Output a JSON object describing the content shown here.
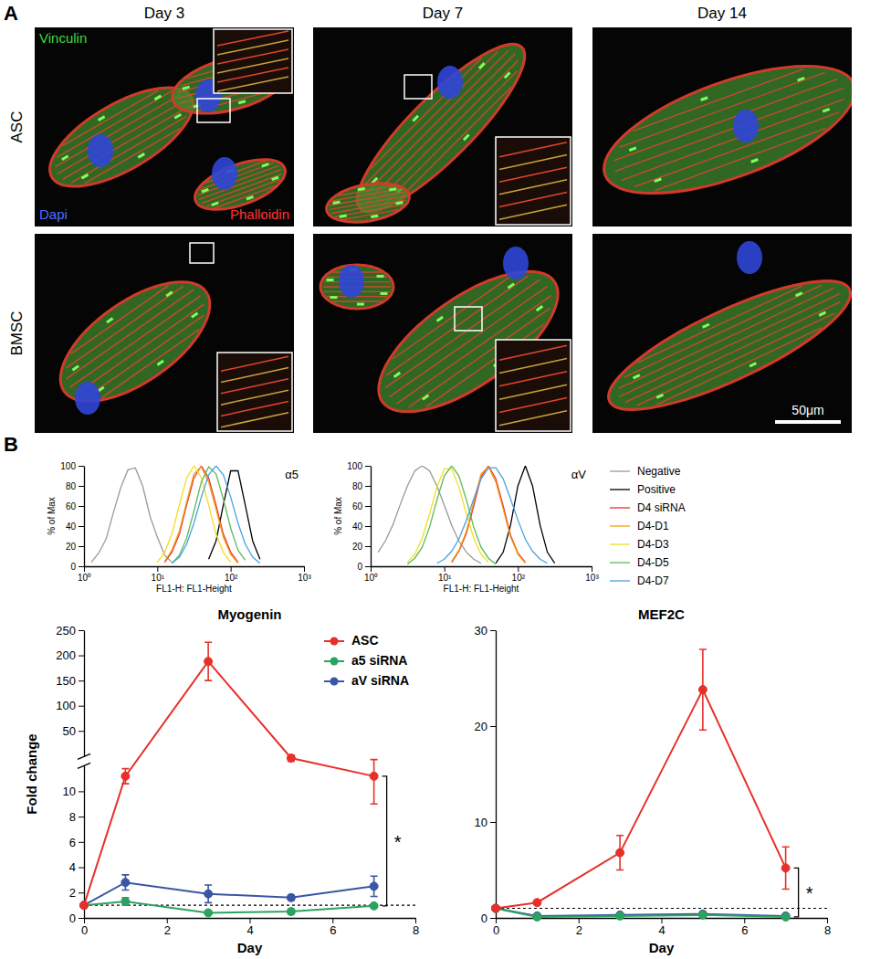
{
  "panel_a": {
    "label": "A",
    "columns": [
      "Day 3",
      "Day 7",
      "Day 14"
    ],
    "rows": [
      "ASC",
      "BMSC"
    ],
    "stains": [
      {
        "text": "Vinculin",
        "color": "#3ddc3d"
      },
      {
        "text": "Dapi",
        "color": "#4f6dff"
      },
      {
        "text": "Phalloidin",
        "color": "#ff3333"
      }
    ],
    "scale_bar": "50μm"
  },
  "panel_b": {
    "label": "B"
  },
  "chart_data": [
    {
      "type": "line",
      "title": "α5",
      "x_label": "FL1-H: FL1-Height",
      "y_label": "% of Max",
      "log": "x",
      "xlim": [
        1,
        1000
      ],
      "xticks": [
        {
          "value": 1,
          "label": "10⁰"
        },
        {
          "value": 10,
          "label": "10¹"
        },
        {
          "value": 100,
          "label": "10²"
        },
        {
          "value": 1000,
          "label": "10³"
        }
      ],
      "ylim": [
        0,
        100
      ],
      "yticks": [
        0,
        20,
        40,
        60,
        80,
        100
      ],
      "x": [
        1,
        1.26,
        1.58,
        2,
        2.51,
        3.16,
        3.98,
        5.01,
        6.31,
        7.94,
        10,
        12.6,
        15.8,
        20,
        25.1,
        31.6,
        39.8,
        50.1,
        63.1,
        79.4,
        100,
        126,
        158,
        200,
        251,
        316,
        398,
        501,
        631,
        794,
        1000
      ],
      "series": [
        {
          "color": "#999999",
          "values": [
            null,
            4,
            13,
            27,
            53,
            78,
            96,
            98,
            80,
            50,
            29,
            11,
            4,
            null,
            null,
            null,
            null,
            null,
            null,
            null,
            null,
            null,
            null,
            null,
            null,
            null,
            null,
            null,
            null,
            null,
            null
          ]
        },
        {
          "color": "#000000",
          "values": [
            null,
            null,
            null,
            null,
            null,
            null,
            null,
            null,
            null,
            null,
            null,
            null,
            null,
            null,
            null,
            null,
            null,
            7,
            25,
            61,
            95,
            95,
            61,
            25,
            7,
            null,
            null,
            null,
            null,
            null,
            null
          ]
        },
        {
          "color": "#e8302a",
          "values": [
            null,
            null,
            null,
            null,
            null,
            null,
            null,
            null,
            null,
            null,
            null,
            4,
            14,
            32,
            61,
            88,
            100,
            88,
            61,
            32,
            14,
            4,
            null,
            null,
            null,
            null,
            null,
            null,
            null,
            null,
            null
          ]
        },
        {
          "color": "#f39c12",
          "values": [
            null,
            null,
            null,
            null,
            null,
            null,
            null,
            null,
            null,
            null,
            null,
            5,
            16,
            35,
            64,
            92,
            99,
            84,
            57,
            29,
            12,
            3,
            null,
            null,
            null,
            null,
            null,
            null,
            null,
            null,
            null
          ]
        },
        {
          "color": "#f2df1b",
          "values": [
            null,
            null,
            null,
            null,
            null,
            null,
            null,
            null,
            null,
            null,
            4,
            14,
            32,
            61,
            88,
            100,
            88,
            61,
            32,
            14,
            4,
            null,
            null,
            null,
            null,
            null,
            null,
            null,
            null,
            null,
            null
          ]
        },
        {
          "color": "#5cb85c",
          "values": [
            null,
            null,
            null,
            null,
            null,
            null,
            null,
            null,
            null,
            null,
            null,
            null,
            3,
            11,
            28,
            55,
            84,
            99,
            92,
            67,
            38,
            16,
            6,
            null,
            null,
            null,
            null,
            null,
            null,
            null,
            null
          ]
        },
        {
          "color": "#4aa3df",
          "values": [
            null,
            null,
            null,
            null,
            null,
            null,
            null,
            null,
            null,
            null,
            null,
            null,
            3,
            9,
            22,
            43,
            69,
            91,
            100,
            91,
            69,
            43,
            22,
            9,
            3,
            null,
            null,
            null,
            null,
            null,
            null
          ]
        }
      ]
    },
    {
      "type": "line",
      "title": "αV",
      "x_label": "FL1-H: FL1-Height",
      "y_label": "% of Max",
      "log": "x",
      "legend": "right",
      "xlim": [
        1,
        1000
      ],
      "xticks": [
        {
          "value": 1,
          "label": "10⁰"
        },
        {
          "value": 10,
          "label": "10¹"
        },
        {
          "value": 100,
          "label": "10²"
        },
        {
          "value": 1000,
          "label": "10³"
        }
      ],
      "ylim": [
        0,
        100
      ],
      "yticks": [
        0,
        20,
        40,
        60,
        80,
        100
      ],
      "x": [
        1,
        1.26,
        1.58,
        2,
        2.51,
        3.16,
        3.98,
        5.01,
        6.31,
        7.94,
        10,
        12.6,
        15.8,
        20,
        25.1,
        31.6,
        39.8,
        50.1,
        63.1,
        79.4,
        100,
        126,
        158,
        200,
        251,
        316,
        398,
        501,
        631,
        794,
        1000
      ],
      "series": [
        {
          "name": "Negative",
          "color": "#999999",
          "values": [
            null,
            14,
            25,
            41,
            61,
            80,
            95,
            100,
            95,
            80,
            61,
            41,
            25,
            14,
            7,
            3,
            null,
            null,
            null,
            null,
            null,
            null,
            null,
            null,
            null,
            null,
            null,
            null,
            null,
            null,
            null
          ]
        },
        {
          "name": "Positive",
          "color": "#000000",
          "values": [
            null,
            null,
            null,
            null,
            null,
            null,
            null,
            null,
            null,
            null,
            null,
            null,
            null,
            null,
            null,
            null,
            null,
            3,
            14,
            41,
            80,
            100,
            80,
            41,
            14,
            3,
            null,
            null,
            null,
            null,
            null
          ]
        },
        {
          "name": "D4 siRNA",
          "color": "#e8302a",
          "values": [
            null,
            null,
            null,
            null,
            null,
            null,
            null,
            null,
            null,
            null,
            null,
            4,
            15,
            33,
            60,
            89,
            100,
            87,
            60,
            31,
            13,
            4,
            null,
            null,
            null,
            null,
            null,
            null,
            null,
            null,
            null
          ]
        },
        {
          "name": "D4-D1",
          "color": "#f39c12",
          "values": [
            null,
            null,
            null,
            null,
            null,
            null,
            null,
            null,
            null,
            null,
            null,
            5,
            16,
            35,
            64,
            92,
            99,
            84,
            57,
            29,
            12,
            3,
            null,
            null,
            null,
            null,
            null,
            null,
            null,
            null,
            null
          ]
        },
        {
          "name": "D4-D3",
          "color": "#f2df1b",
          "values": [
            null,
            null,
            null,
            null,
            null,
            4,
            12,
            28,
            52,
            79,
            97,
            97,
            79,
            52,
            28,
            12,
            4,
            null,
            null,
            null,
            null,
            null,
            null,
            null,
            null,
            null,
            null,
            null,
            null,
            null,
            null
          ]
        },
        {
          "name": "D4-D5",
          "color": "#5cb85c",
          "values": [
            null,
            null,
            null,
            null,
            null,
            2,
            8,
            19,
            39,
            66,
            90,
            100,
            90,
            66,
            39,
            19,
            8,
            2,
            null,
            null,
            null,
            null,
            null,
            null,
            null,
            null,
            null,
            null,
            null,
            null,
            null
          ]
        },
        {
          "name": "D4-D7",
          "color": "#4aa3df",
          "values": [
            null,
            null,
            null,
            null,
            null,
            null,
            null,
            null,
            null,
            3,
            7,
            15,
            27,
            46,
            67,
            87,
            98,
            98,
            87,
            67,
            46,
            27,
            15,
            7,
            3,
            null,
            null,
            null,
            null,
            null,
            null
          ]
        }
      ]
    },
    {
      "type": "line",
      "title": "Myogenin",
      "x_label": "Day",
      "y_label": "Fold change",
      "marker": "circle",
      "legend": "top-right",
      "xlim": [
        0,
        8
      ],
      "xticks": [
        0,
        2,
        4,
        6,
        8
      ],
      "ylim": [
        0,
        250
      ],
      "yticks": [
        0,
        2,
        4,
        6,
        8,
        10,
        50,
        100,
        150,
        200,
        250
      ],
      "reference_line": 1,
      "annotations": [
        {
          "text": "*"
        }
      ],
      "x": [
        0,
        1,
        3,
        5,
        7
      ],
      "series": [
        {
          "name": "ASC",
          "color": "#e8302a",
          "values": [
            1,
            20,
            188,
            32,
            20
          ],
          "errors": [
            0,
            5,
            38,
            2,
            11
          ]
        },
        {
          "name": "a5 siRNA",
          "color": "#2ca25f",
          "values": [
            1,
            1.3,
            0.4,
            0.5,
            0.95
          ],
          "errors": [
            0,
            0.3,
            0.1,
            0.2,
            0.1
          ]
        },
        {
          "name": "aV siRNA",
          "color": "#3a55a4",
          "values": [
            1,
            2.8,
            1.9,
            1.6,
            2.5
          ],
          "errors": [
            0,
            0.6,
            0.7,
            0.2,
            0.8
          ]
        }
      ]
    },
    {
      "type": "line",
      "title": "MEF2C",
      "x_label": "Day",
      "marker": "circle",
      "xlim": [
        0,
        8
      ],
      "xticks": [
        0,
        2,
        4,
        6,
        8
      ],
      "ylim": [
        0,
        30
      ],
      "yticks": [
        0,
        10,
        20,
        30
      ],
      "reference_line": 1,
      "annotations": [
        {
          "text": "*"
        }
      ],
      "x": [
        0,
        1,
        3,
        5,
        7
      ],
      "series": [
        {
          "color": "#e8302a",
          "values": [
            1,
            1.6,
            6.8,
            23.8,
            5.2
          ],
          "errors": [
            0,
            0.2,
            1.8,
            4.2,
            2.2
          ]
        },
        {
          "color": "#2ca25f",
          "values": [
            1,
            0.1,
            0.2,
            0.3,
            0.1
          ],
          "errors": [
            0,
            0.05,
            0.05,
            0.05,
            0.05
          ]
        },
        {
          "color": "#3a55a4",
          "values": [
            1,
            0.2,
            0.3,
            0.4,
            0.2
          ],
          "errors": [
            0,
            0.05,
            0.05,
            0.05,
            0.05
          ]
        }
      ]
    }
  ]
}
